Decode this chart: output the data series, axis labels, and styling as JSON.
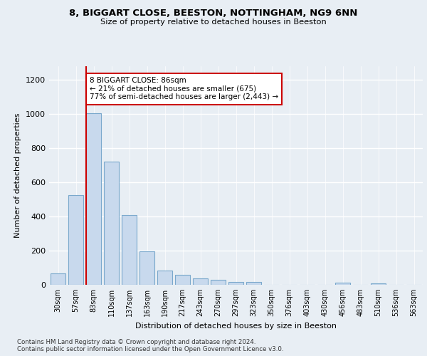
{
  "title1": "8, BIGGART CLOSE, BEESTON, NOTTINGHAM, NG9 6NN",
  "title2": "Size of property relative to detached houses in Beeston",
  "xlabel": "Distribution of detached houses by size in Beeston",
  "ylabel": "Number of detached properties",
  "categories": [
    "30sqm",
    "57sqm",
    "83sqm",
    "110sqm",
    "137sqm",
    "163sqm",
    "190sqm",
    "217sqm",
    "243sqm",
    "270sqm",
    "297sqm",
    "323sqm",
    "350sqm",
    "376sqm",
    "403sqm",
    "430sqm",
    "456sqm",
    "483sqm",
    "510sqm",
    "536sqm",
    "563sqm"
  ],
  "values": [
    65,
    525,
    1005,
    720,
    410,
    197,
    85,
    57,
    38,
    30,
    16,
    18,
    0,
    0,
    0,
    0,
    12,
    0,
    10,
    0,
    0
  ],
  "bar_color": "#c8d9ed",
  "bar_edge_color": "#7aa8cc",
  "highlight_bar_index": 2,
  "highlight_line_color": "#cc0000",
  "annotation_text": "8 BIGGART CLOSE: 86sqm\n← 21% of detached houses are smaller (675)\n77% of semi-detached houses are larger (2,443) →",
  "annotation_box_color": "#ffffff",
  "annotation_box_edge_color": "#cc0000",
  "ylim": [
    0,
    1280
  ],
  "yticks": [
    0,
    200,
    400,
    600,
    800,
    1000,
    1200
  ],
  "footer": "Contains HM Land Registry data © Crown copyright and database right 2024.\nContains public sector information licensed under the Open Government Licence v3.0.",
  "bg_color": "#e8eef4",
  "plot_bg_color": "#e8eef4",
  "grid_color": "#ffffff"
}
